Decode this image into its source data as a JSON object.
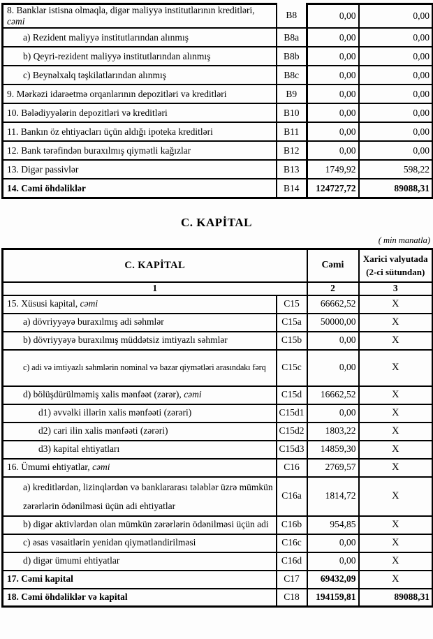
{
  "page": {
    "section_title": "C. KAPİTAL",
    "unit_note": "( min manatla)"
  },
  "table1": {
    "rows": [
      {
        "label": "8. Banklar istisna olmaqla, digər maliyyə institutlarının kreditləri, ",
        "label_italic": "cəmi",
        "code": "B8",
        "total": "0,00",
        "foreign": "0,00",
        "indent": 0
      },
      {
        "label": "a) Rezident maliyyə institutlarından alınmış",
        "code": "B8a",
        "total": "0,00",
        "foreign": "0,00",
        "indent": 1
      },
      {
        "label": "b) Qeyri-rezident maliyyə institutlarından alınmış",
        "code": "B8b",
        "total": "0,00",
        "foreign": "0,00",
        "indent": 1
      },
      {
        "label": "c) Beynəlxalq təşkilatlarından alınmış",
        "code": "B8c",
        "total": "0,00",
        "foreign": "0,00",
        "indent": 1
      },
      {
        "label": "9. Mərkəzi idarəetmə orqanlarının depozitləri və kreditləri",
        "code": "B9",
        "total": "0,00",
        "foreign": "0,00",
        "indent": 0
      },
      {
        "label": "10. Bələdiyyələrin depozitləri və kreditləri",
        "code": "B10",
        "total": "0,00",
        "foreign": "0,00",
        "indent": 0
      },
      {
        "label": "11. Bankın öz ehtiyacları üçün aldığı ipoteka kreditləri",
        "code": "B11",
        "total": "0,00",
        "foreign": "0,00",
        "indent": 0
      },
      {
        "label": "12. Bank tərəfindən buraxılmış qiymətli kağızlar",
        "code": "B12",
        "total": "0,00",
        "foreign": "0,00",
        "indent": 0
      },
      {
        "label": "13. Digər passivlər",
        "code": "B13",
        "total": "1749,92",
        "foreign": "598,22",
        "indent": 0
      },
      {
        "label": "14. Cəmi öhdəliklər",
        "code": "B14",
        "total": "124727,72",
        "foreign": "89088,31",
        "indent": 0,
        "bold": true
      }
    ]
  },
  "table2": {
    "header": {
      "title": "C. KAPİTAL",
      "total": "Cəmi",
      "foreign_line1": "Xarici valyutada",
      "foreign_line2": "(2-ci sütundan)"
    },
    "column_numbers": [
      "1",
      "2",
      "3"
    ],
    "rows": [
      {
        "label": "15. Xüsusi kapital, ",
        "label_italic": "cəmi",
        "code": "C15",
        "total": "66662,52",
        "foreign": "X",
        "indent": 0
      },
      {
        "label": "a) dövriyyəyə buraxılmış adi səhmlər",
        "code": "C15a",
        "total": "50000,00",
        "foreign": "X",
        "indent": 1
      },
      {
        "label": "b) dövriyyəyə buraxılmış müddətsiz imtiyazlı səhmlər",
        "code": "C15b",
        "total": "0,00",
        "foreign": "X",
        "indent": 1
      },
      {
        "label": "c) adi və imtiyazlı səhmlərin nominal və bazar qiymətləri arasındakı fərq",
        "code": "C15c",
        "total": "0,00",
        "foreign": "X",
        "indent": 1,
        "tall": true,
        "fit": true
      },
      {
        "label": "d) bölüşdürülməmiş xalis mənfəət (zərər), ",
        "label_italic": "cəmi",
        "code": "C15d",
        "total": "16662,52",
        "foreign": "X",
        "indent": 1
      },
      {
        "label": "d1) əvvəlki illərin xalis mənfəəti (zərəri)",
        "code": "C15d1",
        "total": "0,00",
        "foreign": "X",
        "indent": 2
      },
      {
        "label": "d2) cari ilin xalis mənfəəti (zərəri)",
        "code": "C15d2",
        "total": "1803,22",
        "foreign": "X",
        "indent": 2
      },
      {
        "label": "d3) kapital ehtiyatları",
        "code": "C15d3",
        "total": "14859,30",
        "foreign": "X",
        "indent": 2
      },
      {
        "label": "16. Ümumi ehtiyatlar, ",
        "label_italic": "cəmi",
        "code": "C16",
        "total": "2769,57",
        "foreign": "X",
        "indent": 0
      },
      {
        "label": "a) kreditlərdən, lizinqlərdən və banklararası  tələblər üzrə mümkün zərərlərin ödənilməsi üçün adi ehtiyatlar",
        "code": "C16a",
        "total": "1814,72",
        "foreign": "X",
        "indent": 1,
        "tall": true
      },
      {
        "label": "b) digər aktivlərdən olan mümkün zərərlərin ödənilməsi üçün adi",
        "code": "C16b",
        "total": "954,85",
        "foreign": "X",
        "indent": 1
      },
      {
        "label": "c) əsas vəsaitlərin yenidən qiymətləndirilməsi",
        "code": "C16c",
        "total": "0,00",
        "foreign": "X",
        "indent": 1
      },
      {
        "label": "d) digər ümumi ehtiyatlar",
        "code": "C16d",
        "total": "0,00",
        "foreign": "X",
        "indent": 1
      },
      {
        "label": "17. Cəmi kapital",
        "code": "C17",
        "total": "69432,09",
        "foreign": "X",
        "indent": 0,
        "bold": true
      },
      {
        "label": "18. Cəmi öhdəliklər və kapital",
        "code": "C18",
        "total": "194159,81",
        "foreign": "89088,31",
        "indent": 0,
        "bold": true
      }
    ]
  }
}
